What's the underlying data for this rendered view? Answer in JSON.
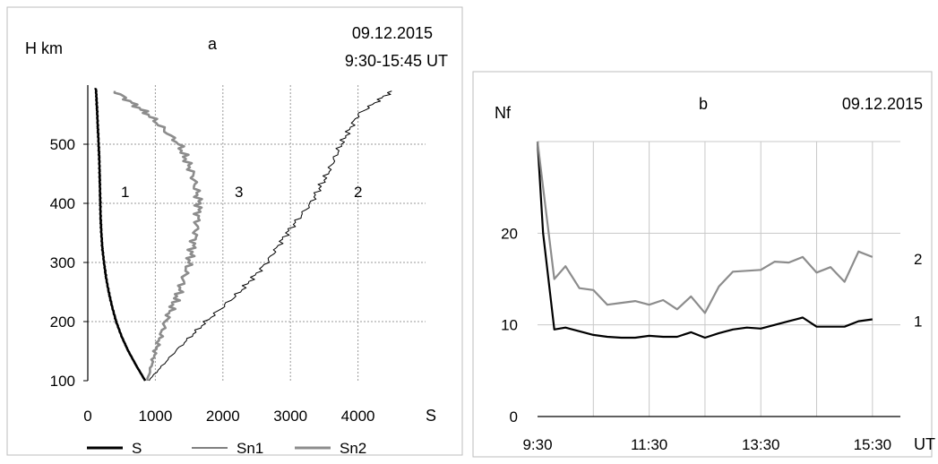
{
  "chart_data": [
    {
      "panel_label": "a",
      "type": "line",
      "date": "09.12.2015",
      "time_range": "9:30-15:45 UT",
      "xlabel": "S",
      "ylabel": "H km",
      "xlim": [
        0,
        5000
      ],
      "ylim": [
        100,
        600
      ],
      "xticks": [
        0,
        1000,
        2000,
        3000,
        4000
      ],
      "yticks": [
        100,
        200,
        300,
        400,
        500
      ],
      "grid": "dotted",
      "legend_position": "bottom",
      "series": [
        {
          "name": "S",
          "curve_label": "1",
          "color": "#000000",
          "style": "thick",
          "points": [
            [
              850,
              100
            ],
            [
              720,
              125
            ],
            [
              600,
              150
            ],
            [
              500,
              175
            ],
            [
              420,
              200
            ],
            [
              360,
              225
            ],
            [
              310,
              250
            ],
            [
              270,
              275
            ],
            [
              240,
              300
            ],
            [
              215,
              325
            ],
            [
              200,
              350
            ],
            [
              190,
              375
            ],
            [
              185,
              400
            ],
            [
              180,
              425
            ],
            [
              175,
              450
            ],
            [
              170,
              475
            ],
            [
              160,
              500
            ],
            [
              150,
              525
            ],
            [
              140,
              550
            ],
            [
              130,
              575
            ],
            [
              120,
              595
            ]
          ]
        },
        {
          "name": "Sn1",
          "curve_label": "3",
          "color": "#000000",
          "style": "thin",
          "points": [
            [
              900,
              100
            ],
            [
              1300,
              150
            ],
            [
              1750,
              200
            ],
            [
              2250,
              250
            ],
            [
              2650,
              300
            ],
            [
              2950,
              350
            ],
            [
              3300,
              400
            ],
            [
              3550,
              450
            ],
            [
              3750,
              500
            ],
            [
              4000,
              550
            ],
            [
              4500,
              590
            ]
          ]
        },
        {
          "name": "Sn2",
          "curve_label": "2",
          "color": "#8c8c8c",
          "style": "thick",
          "points": [
            [
              880,
              100
            ],
            [
              1000,
              150
            ],
            [
              1150,
              200
            ],
            [
              1350,
              250
            ],
            [
              1500,
              300
            ],
            [
              1600,
              350
            ],
            [
              1650,
              400
            ],
            [
              1550,
              450
            ],
            [
              1350,
              500
            ],
            [
              900,
              550
            ],
            [
              400,
              590
            ]
          ]
        }
      ]
    },
    {
      "panel_label": "b",
      "type": "line",
      "date": "09.12.2015",
      "xlabel": "UT",
      "ylabel": "Nf",
      "ylim": [
        0,
        30
      ],
      "yticks": [
        0,
        10,
        20
      ],
      "xticks": [
        "9:30",
        "11:30",
        "13:30",
        "15:30"
      ],
      "x_unit": "hours",
      "grid": "both",
      "series": [
        {
          "curve_label": "1",
          "color": "#000000",
          "points": [
            [
              9.5,
              30
            ],
            [
              9.6,
              20
            ],
            [
              9.8,
              9.5
            ],
            [
              10.0,
              9.7
            ],
            [
              10.25,
              9.3
            ],
            [
              10.5,
              8.9
            ],
            [
              10.75,
              8.7
            ],
            [
              11.0,
              8.6
            ],
            [
              11.25,
              8.6
            ],
            [
              11.5,
              8.8
            ],
            [
              11.75,
              8.7
            ],
            [
              12.0,
              8.7
            ],
            [
              12.25,
              9.2
            ],
            [
              12.5,
              8.6
            ],
            [
              12.75,
              9.1
            ],
            [
              13.0,
              9.5
            ],
            [
              13.25,
              9.7
            ],
            [
              13.5,
              9.6
            ],
            [
              13.75,
              10.0
            ],
            [
              14.0,
              10.4
            ],
            [
              14.25,
              10.8
            ],
            [
              14.5,
              9.8
            ],
            [
              14.75,
              9.8
            ],
            [
              15.0,
              9.8
            ],
            [
              15.25,
              10.4
            ],
            [
              15.5,
              10.6
            ]
          ]
        },
        {
          "curve_label": "2",
          "color": "#8c8c8c",
          "points": [
            [
              9.5,
              30
            ],
            [
              9.6,
              25
            ],
            [
              9.8,
              15
            ],
            [
              10.0,
              16.4
            ],
            [
              10.25,
              14
            ],
            [
              10.5,
              13.8
            ],
            [
              10.75,
              12.2
            ],
            [
              11.0,
              12.4
            ],
            [
              11.25,
              12.6
            ],
            [
              11.5,
              12.2
            ],
            [
              11.75,
              12.7
            ],
            [
              12.0,
              11.7
            ],
            [
              12.25,
              13.1
            ],
            [
              12.5,
              11.3
            ],
            [
              12.75,
              14.2
            ],
            [
              13.0,
              15.8
            ],
            [
              13.25,
              15.9
            ],
            [
              13.5,
              16.0
            ],
            [
              13.75,
              16.9
            ],
            [
              14.0,
              16.8
            ],
            [
              14.25,
              17.4
            ],
            [
              14.5,
              15.7
            ],
            [
              14.75,
              16.3
            ],
            [
              15.0,
              14.7
            ],
            [
              15.25,
              18.0
            ],
            [
              15.5,
              17.4
            ]
          ]
        }
      ]
    }
  ]
}
